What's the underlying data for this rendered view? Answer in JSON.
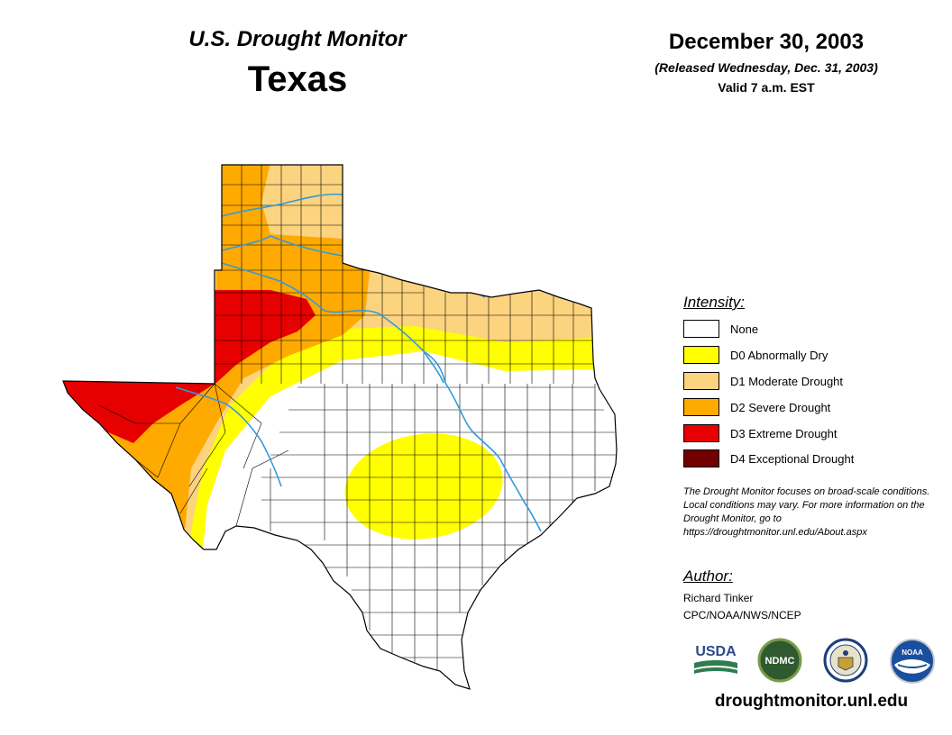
{
  "header": {
    "subtitle": "U.S. Drought Monitor",
    "state": "Texas",
    "date": "December 30, 2003",
    "released": "(Released Wednesday, Dec. 31, 2003)",
    "valid": "Valid 7 a.m. EST"
  },
  "legend": {
    "title": "Intensity:",
    "items": [
      {
        "label": "None",
        "color": "#ffffff"
      },
      {
        "label": "D0 Abnormally Dry",
        "color": "#ffff00"
      },
      {
        "label": "D1 Moderate Drought",
        "color": "#fcd37f"
      },
      {
        "label": "D2 Severe Drought",
        "color": "#ffaa00"
      },
      {
        "label": "D3 Extreme Drought",
        "color": "#e60000"
      },
      {
        "label": "D4 Exceptional Drought",
        "color": "#730000"
      }
    ]
  },
  "note": "The Drought Monitor focuses on broad-scale conditions. Local conditions may vary. For more information on the Drought Monitor, go to https://droughtmonitor.unl.edu/About.aspx",
  "author": {
    "title": "Author:",
    "name": "Richard Tinker",
    "org": "CPC/NOAA/NWS/NCEP"
  },
  "logos": {
    "usda": "USDA",
    "ndmc": "NDMC",
    "noaa": "NOAA"
  },
  "website": "droughtmonitor.unl.edu",
  "colors": {
    "river": "#3399dd",
    "county_line": "#000000"
  }
}
